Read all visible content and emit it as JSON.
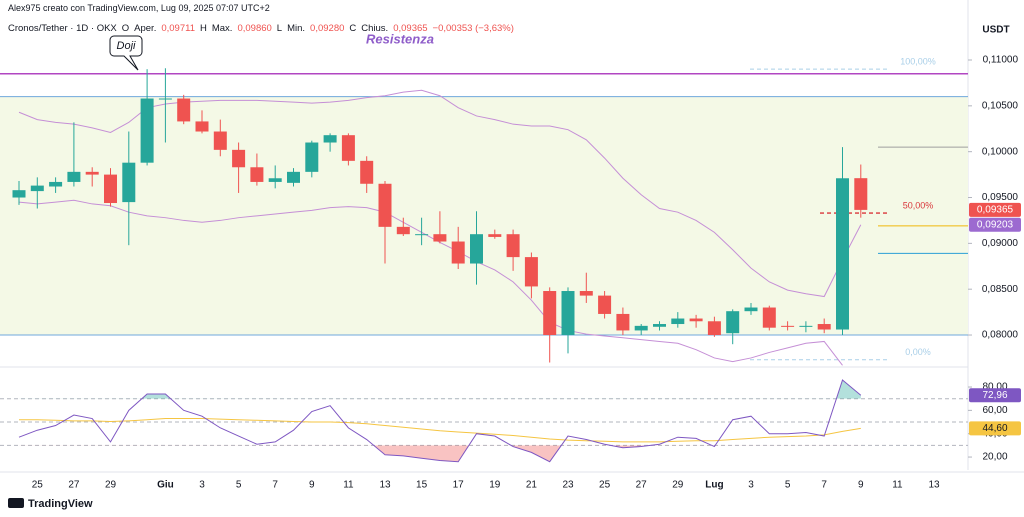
{
  "header": {
    "author": "Alex975 creato con TradingView.com, Lug 09, 2025 07:07 UTC+2",
    "symbol": "Cronos/Tether · 1D · OKX",
    "ohlc": [
      {
        "key": "O",
        "label": "Aper.",
        "value": "0,09711"
      },
      {
        "key": "H",
        "label": "Max.",
        "value": "0,09860"
      },
      {
        "key": "L",
        "label": "Min.",
        "value": "0,09280"
      },
      {
        "key": "C",
        "label": "Chius.",
        "value": "0,09365"
      }
    ],
    "change": "−0,00353 (−3,63%)"
  },
  "brand": "TradingView",
  "chart_data": [
    {
      "type": "candlestick",
      "y_axis_label": "USDT",
      "resistance_label": "Resistenza",
      "doji_label": "Doji",
      "categories": [
        null,
        "25",
        null,
        "27",
        null,
        "29",
        null,
        null,
        "Giu",
        null,
        "3",
        null,
        "5",
        null,
        "7",
        null,
        "9",
        null,
        "11",
        null,
        "13",
        null,
        "15",
        null,
        "17",
        null,
        "19",
        null,
        "21",
        null,
        "23",
        null,
        "25",
        null,
        "27",
        null,
        "29",
        null,
        "Lug",
        null,
        "3",
        null,
        "5",
        null,
        "7",
        null,
        "9",
        null,
        "11",
        null,
        "13",
        null
      ],
      "open": [
        0.095,
        0.0957,
        0.0962,
        0.0967,
        0.0978,
        0.0975,
        0.0945,
        0.0988,
        0.1057,
        0.1058,
        0.1033,
        0.1022,
        0.1002,
        0.0983,
        0.0967,
        0.0966,
        0.0978,
        0.101,
        0.1018,
        0.099,
        0.0965,
        0.0918,
        0.091,
        0.091,
        0.0902,
        0.0878,
        0.091,
        0.091,
        0.0885,
        0.0848,
        0.08,
        0.0848,
        0.0843,
        0.0823,
        0.0805,
        0.0809,
        0.0812,
        0.0818,
        0.0815,
        0.0802,
        0.0826,
        0.083,
        0.081,
        0.0809,
        0.0812,
        0.0806,
        0.09711,
        null,
        null,
        null,
        null,
        null
      ],
      "high": [
        0.0968,
        0.0972,
        0.0972,
        0.1032,
        0.0983,
        0.0982,
        0.1022,
        0.109,
        0.1091,
        0.1062,
        0.1045,
        0.1035,
        0.101,
        0.0998,
        0.0985,
        0.0982,
        0.1012,
        0.102,
        0.102,
        0.0995,
        0.0968,
        0.0928,
        0.0928,
        0.0935,
        0.0918,
        0.0935,
        0.0915,
        0.0915,
        0.089,
        0.0852,
        0.0852,
        0.0868,
        0.0848,
        0.083,
        0.0812,
        0.0815,
        0.0825,
        0.0822,
        0.082,
        0.0828,
        0.0835,
        0.0832,
        0.0815,
        0.0815,
        0.0818,
        0.1005,
        0.0986,
        null,
        null,
        null,
        null,
        null
      ],
      "low": [
        0.0942,
        0.0938,
        0.0955,
        0.0962,
        0.0962,
        0.094,
        0.0898,
        0.0985,
        0.101,
        0.103,
        0.102,
        0.0995,
        0.0955,
        0.0963,
        0.096,
        0.0962,
        0.0972,
        0.1,
        0.0985,
        0.0955,
        0.0878,
        0.0908,
        0.0898,
        0.09,
        0.0872,
        0.0855,
        0.0905,
        0.087,
        0.084,
        0.077,
        0.078,
        0.0835,
        0.0818,
        0.08,
        0.08,
        0.0805,
        0.0808,
        0.0808,
        0.0798,
        0.079,
        0.0822,
        0.0805,
        0.0805,
        0.0803,
        0.0802,
        0.08,
        0.0928,
        null,
        null,
        null,
        null,
        null
      ],
      "close": [
        0.0958,
        0.0963,
        0.0967,
        0.0978,
        0.0975,
        0.0944,
        0.0988,
        0.1058,
        0.1058,
        0.1033,
        0.1022,
        0.1002,
        0.0983,
        0.0967,
        0.0971,
        0.0978,
        0.101,
        0.1018,
        0.099,
        0.0965,
        0.0918,
        0.091,
        0.091,
        0.0902,
        0.0878,
        0.091,
        0.0907,
        0.0885,
        0.0853,
        0.08,
        0.0848,
        0.0843,
        0.0823,
        0.0805,
        0.081,
        0.0812,
        0.0818,
        0.0815,
        0.08,
        0.0826,
        0.083,
        0.0808,
        0.0809,
        0.081,
        0.0806,
        0.0971,
        0.09365,
        null,
        null,
        null,
        null,
        null
      ],
      "up_color": "#26a69a",
      "down_color": "#ef5350",
      "bands": [
        {
          "color": "#c58fd6",
          "values": [
            0.1043,
            0.1035,
            0.1032,
            0.103,
            0.1026,
            0.1021,
            0.1032,
            0.1048,
            0.1052,
            0.1054,
            0.1055,
            0.1056,
            0.1056,
            0.1056,
            0.1055,
            0.1054,
            0.1053,
            0.1054,
            0.1056,
            0.1059,
            0.1061,
            0.1065,
            0.1067,
            0.1061,
            0.1048,
            0.1039,
            0.1035,
            0.103,
            0.1028,
            0.1028,
            0.1024,
            0.1013,
            0.0993,
            0.0971,
            0.0953,
            0.0938,
            0.0934,
            0.0925,
            0.0912,
            0.0893,
            0.0873,
            0.0858,
            0.0849,
            0.0845,
            0.0842,
            0.0882,
            0.09203,
            null,
            null,
            null,
            null,
            null
          ]
        },
        {
          "color": "#c58fd6",
          "values": [
            0.0945,
            0.0943,
            0.0945,
            0.0947,
            0.0943,
            0.0941,
            0.0934,
            0.093,
            0.0928,
            0.0925,
            0.0923,
            0.0925,
            0.0928,
            0.093,
            0.0932,
            0.0934,
            0.0936,
            0.0939,
            0.094,
            0.0939,
            0.0934,
            0.0923,
            0.0912,
            0.0901,
            0.0891,
            0.088,
            0.0871,
            0.0858,
            0.0838,
            0.0814,
            0.0805,
            0.0801,
            0.0799,
            0.0797,
            0.0795,
            0.0793,
            0.0791,
            0.0784,
            0.0775,
            0.0771,
            0.0775,
            0.0781,
            0.0786,
            0.0791,
            0.0793,
            0.0767,
            null,
            null,
            null,
            null,
            null,
            null
          ]
        }
      ],
      "zone": {
        "range": [
          0.08,
          0.106
        ],
        "color": "#f4f9e6"
      },
      "levels": [
        {
          "value": 0.1085,
          "color": "#b146c2"
        },
        {
          "value": 0.106,
          "color": "#6fa8dc"
        },
        {
          "value": 0.08,
          "color": "#6fa8dc"
        }
      ],
      "fib": [
        {
          "value": 0.109,
          "label": "100,00%",
          "color": "#a9cfe8"
        },
        {
          "value": 0.0933,
          "label": "50,00%",
          "color": "#d9373b"
        },
        {
          "value": 0.0773,
          "label": "0,00%",
          "color": "#a9cfe8"
        }
      ],
      "side_lines": [
        {
          "value": 0.1005,
          "color": "#9e9e9e"
        },
        {
          "value": 0.0919,
          "color": "#f0b90b"
        },
        {
          "value": 0.0889,
          "color": "#2a9fd6"
        }
      ],
      "price_tags": [
        {
          "value": 0.09365,
          "label": "0,09365",
          "color": "#ef5350"
        },
        {
          "value": 0.09203,
          "label": "0,09203",
          "color": "#9c6ad0"
        }
      ],
      "ylim": [
        0.07673,
        0.11491
      ],
      "yticks": [
        {
          "value": 0.11,
          "label": "0,11000"
        },
        {
          "value": 0.105,
          "label": "0,10500"
        },
        {
          "value": 0.1,
          "label": "0,10000"
        },
        {
          "value": 0.095,
          "label": "0,09500"
        },
        {
          "value": 0.09,
          "label": "0,09000"
        },
        {
          "value": 0.085,
          "label": "0,08500"
        },
        {
          "value": 0.08,
          "label": "0,08000"
        }
      ]
    },
    {
      "type": "line",
      "series": [
        {
          "color": "#7e57c2",
          "last_label": "72,96",
          "values": [
            37,
            43,
            47,
            56,
            53,
            33,
            60,
            74,
            74,
            60,
            55,
            45,
            38,
            31,
            33,
            43,
            59,
            64,
            45,
            35,
            22,
            21,
            19,
            17,
            16,
            40,
            38,
            29,
            24,
            16,
            38,
            35,
            31,
            28,
            29,
            31,
            37,
            36,
            29,
            52,
            55,
            40,
            40,
            41,
            38,
            86,
            72.96,
            null,
            null,
            null,
            null,
            null
          ]
        },
        {
          "color": "#f5c542",
          "last_label": "44,60",
          "values": [
            52,
            52,
            51.5,
            51,
            51,
            50.5,
            51,
            52,
            53,
            53,
            53,
            52.5,
            52,
            51.5,
            51,
            50.5,
            50,
            50,
            49.5,
            48.5,
            47,
            45.5,
            44,
            42.5,
            41.5,
            40.5,
            39.5,
            38.5,
            37,
            35.5,
            34.5,
            34,
            33.5,
            33,
            33,
            33,
            33.5,
            34,
            34,
            35,
            36,
            37,
            37.5,
            38,
            39,
            42,
            44.6,
            null,
            null,
            null,
            null,
            null
          ]
        }
      ],
      "guide_lines": [
        70,
        50,
        30
      ],
      "ylim": [
        8.9,
        96.3
      ],
      "yticks": [
        {
          "value": 80,
          "label": "80,00"
        },
        {
          "value": 60,
          "label": "60,00"
        },
        {
          "value": 40,
          "label": "40,00"
        },
        {
          "value": 20,
          "label": "20,00"
        }
      ]
    }
  ]
}
